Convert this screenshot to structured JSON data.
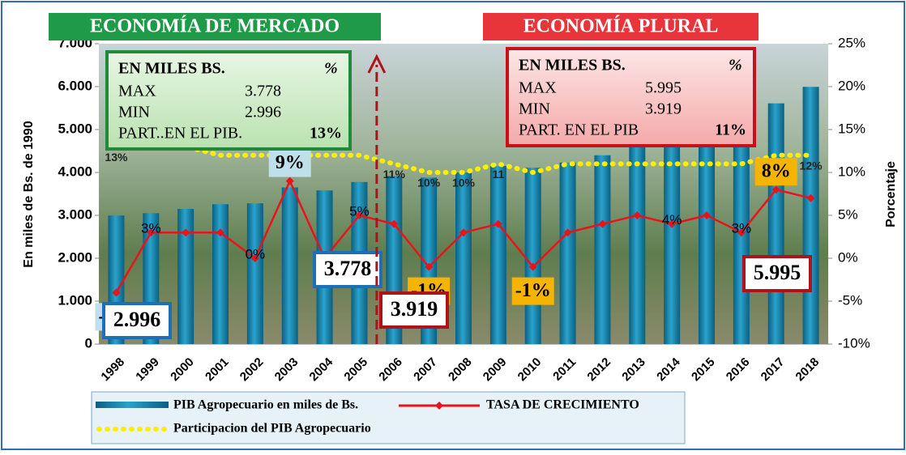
{
  "chart_data": {
    "type": "bar",
    "headers": [
      "ECONOMÍA DE MERCADO",
      "ECONOMÍA PLURAL"
    ],
    "y_label": "En miles de Bs. de 1990",
    "y2_label": "Porcentaje",
    "categories": [
      "1998",
      "1999",
      "2000",
      "2001",
      "2002",
      "2003",
      "2004",
      "2005",
      "2006",
      "2007",
      "2008",
      "2009",
      "2010",
      "2011",
      "2012",
      "2013",
      "2014",
      "2015",
      "2016",
      "2017",
      "2018"
    ],
    "series": [
      {
        "name": "PIB Agropecuario  en miles de Bs.",
        "color": "#1b8db5",
        "values": [
          2996,
          3050,
          3150,
          3260,
          3280,
          3650,
          3580,
          3778,
          3919,
          3880,
          4000,
          4150,
          4110,
          4230,
          4400,
          4620,
          4800,
          5040,
          5190,
          5610,
          5995
        ],
        "value_labels": [
          "2.996",
          null,
          null,
          null,
          null,
          null,
          null,
          "3.778",
          "3.919",
          null,
          null,
          null,
          null,
          null,
          null,
          null,
          null,
          null,
          null,
          null,
          "5.995"
        ]
      },
      {
        "name": "TASA DE CRECIMIENTO",
        "color": "#e8141b",
        "axis": "y2",
        "values": [
          -4,
          3,
          3,
          3,
          0,
          9,
          0,
          5,
          4,
          -1,
          3,
          4,
          -1,
          3,
          4,
          5,
          4,
          5,
          3,
          8,
          7
        ],
        "value_labels": [
          "-4%",
          "3%",
          null,
          null,
          "0%",
          "9%",
          null,
          "5%",
          null,
          "-1%",
          null,
          null,
          "-1%",
          null,
          null,
          null,
          "4%",
          null,
          "3%",
          "8%",
          null
        ]
      },
      {
        "name": "Participacion del PIB Agropecuario",
        "color": "#ffee00",
        "axis": "y2",
        "values": [
          13,
          13,
          13,
          12,
          12,
          12,
          12,
          12,
          11,
          10,
          10,
          11,
          10,
          11,
          11,
          11,
          11,
          11,
          11,
          12,
          12
        ],
        "value_labels": [
          "13%",
          null,
          null,
          null,
          null,
          null,
          null,
          null,
          "11%",
          "10%",
          "10%",
          "11",
          null,
          null,
          null,
          null,
          null,
          null,
          null,
          null,
          "12%"
        ]
      }
    ],
    "ylim": [
      0,
      7000
    ],
    "yticks": [
      0,
      {
        "value": 1000,
        "label": "1.000"
      },
      {
        "value": 2000,
        "label": "2.000"
      },
      {
        "value": 3000,
        "label": "3.000"
      },
      {
        "value": 4000,
        "label": "4.000"
      },
      {
        "value": 5000,
        "label": "5.000"
      },
      {
        "value": 6000,
        "label": "6.000"
      },
      {
        "value": 7000,
        "label": "7.000"
      }
    ],
    "y2lim": [
      -10,
      25
    ],
    "y2ticks": [
      {
        "value": -10,
        "label": "-10%"
      },
      {
        "value": -5,
        "label": "-5%"
      },
      {
        "value": 0,
        "label": "0%"
      },
      {
        "value": 5,
        "label": "5%"
      },
      {
        "value": 10,
        "label": "10%"
      },
      {
        "value": 15,
        "label": "15%"
      },
      {
        "value": 20,
        "label": "20%"
      },
      {
        "value": 25,
        "label": "25%"
      }
    ],
    "info_boxes": [
      {
        "title": "EN MILES BS.",
        "unit": "%",
        "rows": [
          [
            "MAX",
            "3.778"
          ],
          [
            "MIN",
            "2.996"
          ],
          [
            "PART..EN EL PIB.",
            "13%"
          ]
        ]
      },
      {
        "title": "EN MILES BS.",
        "unit": "%",
        "rows": [
          [
            "MAX",
            "5.995"
          ],
          [
            "MIN",
            "3.919"
          ],
          [
            "PART. EN EL PIB",
            "11%"
          ]
        ]
      }
    ]
  }
}
